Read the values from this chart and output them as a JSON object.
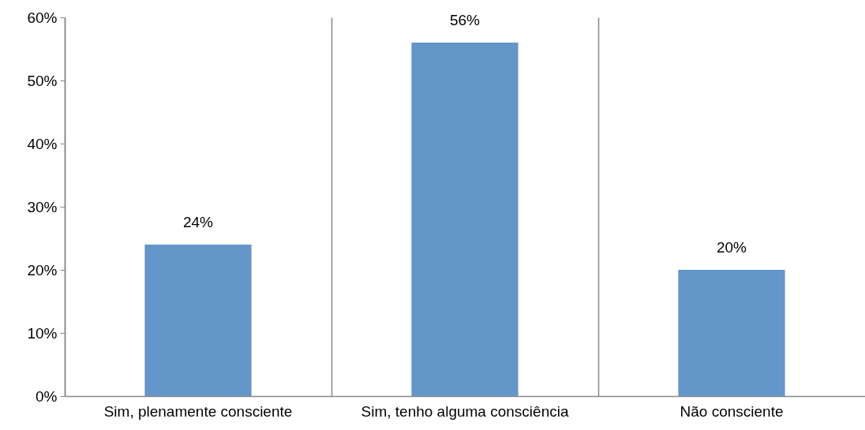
{
  "chart_data": {
    "type": "bar",
    "categories": [
      "Sim, plenamente consciente",
      "Sim, tenho alguma consciência",
      "Não consciente"
    ],
    "values": [
      24,
      56,
      20
    ],
    "color": "#6396c9",
    "value_labels": [
      "24%",
      "56%",
      "20%"
    ],
    "ylim": [
      0,
      60
    ],
    "yticks": [
      {
        "value": 0,
        "label": "0%"
      },
      {
        "value": 10,
        "label": "10%"
      },
      {
        "value": 20,
        "label": "20%"
      },
      {
        "value": 30,
        "label": "30%"
      },
      {
        "value": 40,
        "label": "40%"
      },
      {
        "value": 50,
        "label": "50%"
      },
      {
        "value": 60,
        "label": "60%"
      }
    ],
    "grid": "x"
  }
}
